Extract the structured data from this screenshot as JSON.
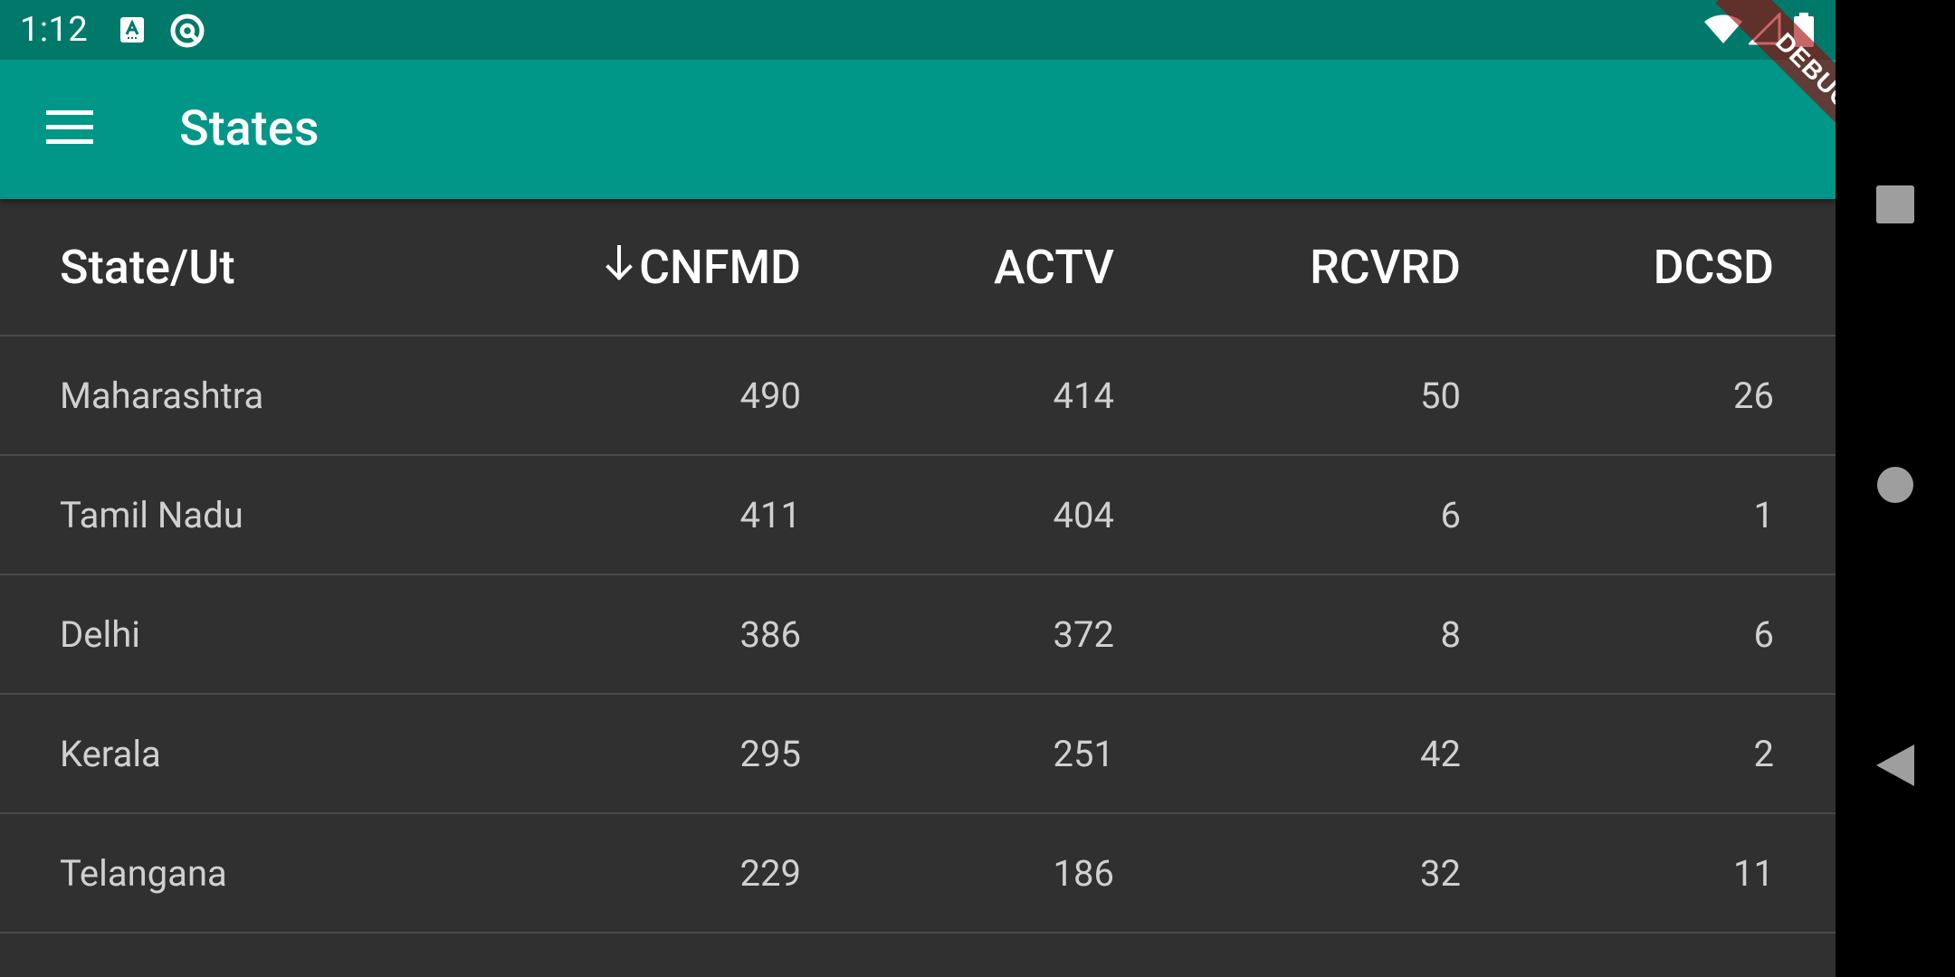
{
  "status_bar": {
    "time": "1:12",
    "icons": [
      "a-keyboard-icon",
      "at-sync-icon",
      "wifi-icon",
      "cell-signal-icon",
      "battery-icon"
    ]
  },
  "app_bar": {
    "title": "States",
    "menu_icon": "hamburger-menu-icon",
    "debug_label": "DEBUG"
  },
  "table": {
    "headers": {
      "state": "State/Ut",
      "confirmed": "CNFMD",
      "active": "ACTV",
      "recovered": "RCVRD",
      "deceased": "DCSD",
      "sorted_column": "confirmed",
      "sort_direction": "descending"
    },
    "rows": [
      {
        "state": "Maharashtra",
        "confirmed": "490",
        "active": "414",
        "recovered": "50",
        "deceased": "26"
      },
      {
        "state": "Tamil Nadu",
        "confirmed": "411",
        "active": "404",
        "recovered": "6",
        "deceased": "1"
      },
      {
        "state": "Delhi",
        "confirmed": "386",
        "active": "372",
        "recovered": "8",
        "deceased": "6"
      },
      {
        "state": "Kerala",
        "confirmed": "295",
        "active": "251",
        "recovered": "42",
        "deceased": "2"
      },
      {
        "state": "Telangana",
        "confirmed": "229",
        "active": "186",
        "recovered": "32",
        "deceased": "11"
      }
    ]
  },
  "nav_bar": {
    "buttons": [
      "recents-square-icon",
      "home-circle-icon",
      "back-triangle-icon"
    ]
  },
  "colors": {
    "status_bar": "#00796b",
    "app_bar": "#009688",
    "background": "#303030",
    "divider": "#4a4a4a"
  }
}
